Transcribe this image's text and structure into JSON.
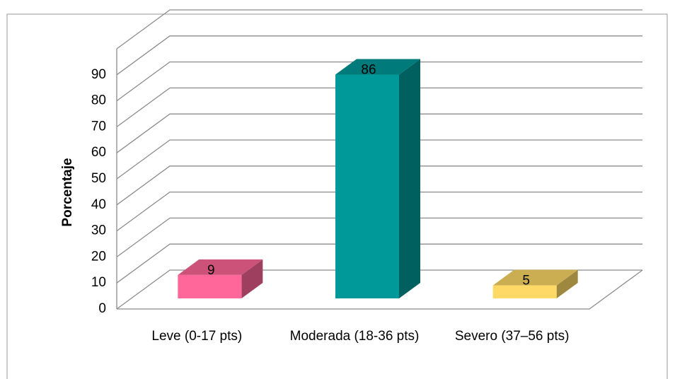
{
  "chart_data": {
    "type": "bar3d",
    "y_label": "Porcentaje",
    "categories": [
      "Leve (0-17 pts)",
      "Moderada (18-36 pts)",
      "Severo (37–56 pts)"
    ],
    "values": [
      9,
      86,
      5
    ],
    "colors": [
      "#ff6699",
      "#009999",
      "#ffd966"
    ],
    "ylim": [
      0,
      100
    ],
    "yticks": [
      0,
      10,
      20,
      30,
      40,
      50,
      60,
      70,
      80,
      90
    ],
    "grid": true
  }
}
